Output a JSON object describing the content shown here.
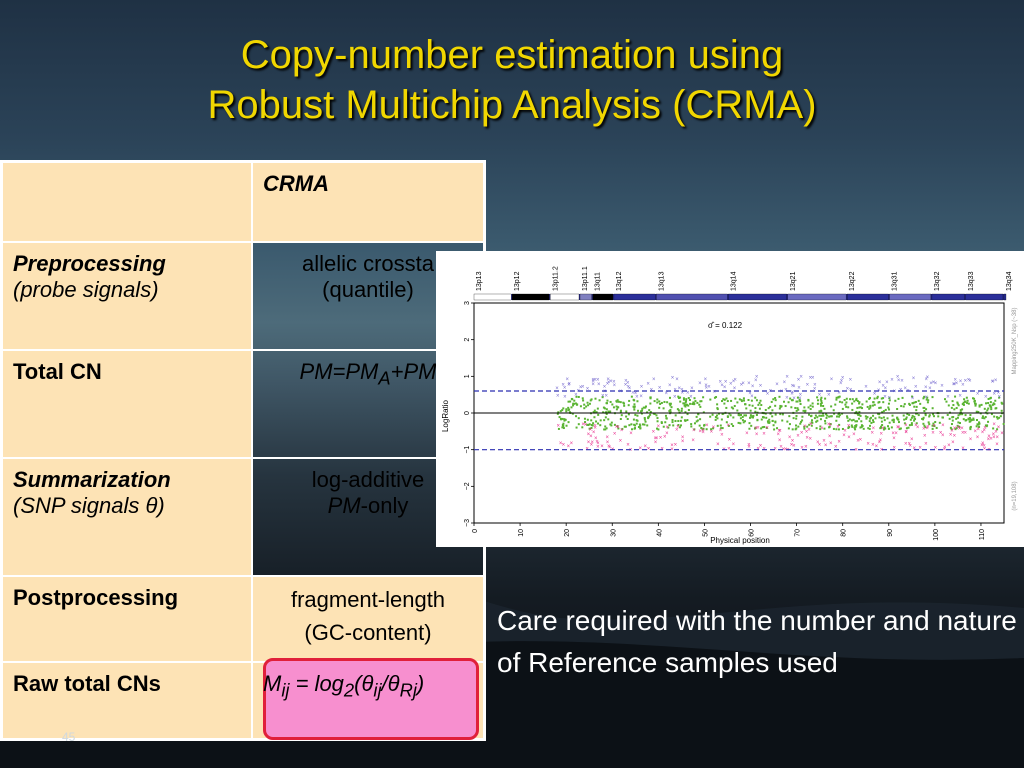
{
  "slide": {
    "title_line1": "Copy-number estimation using",
    "title_line2": "Robust Multichip Analysis (CRMA)",
    "page_number": "45",
    "note": "Care required with the number and nature of Reference samples used",
    "title_color": "#f1d700"
  },
  "table": {
    "header": "CRMA",
    "rows": [
      {
        "label": "Preprocessing",
        "sublabel": "(probe signals)",
        "value1": "allelic crossta",
        "value2": "(quantile)"
      },
      {
        "label": "Total CN",
        "formula_pm": "PM=PM",
        "sub_a": "A",
        "plus": "+PM"
      },
      {
        "label": "Summarization",
        "sublabel_pre": "(SNP signals ",
        "theta": "θ",
        "sublabel_post": ")",
        "value1": "log-additive",
        "value2_pm": "PM",
        "value2_rest": "-only"
      },
      {
        "label": "Postprocessing",
        "value1": "fragment-length",
        "value2": "(GC-content)"
      },
      {
        "label": "Raw total CNs",
        "f_m": "M",
        "f_ij": "ij",
        "f_eq": " = log",
        "f_2": "2",
        "f_open": "(",
        "f_th1": "θ",
        "f_ij2": "ij",
        "f_slash": "/",
        "f_th2": "θ",
        "f_rj": "Rj",
        "f_close": ")"
      }
    ]
  },
  "chart_data": {
    "type": "scatter",
    "xlabel": "Physical position",
    "ylabel": "LogRatio",
    "xlim": [
      0,
      115
    ],
    "ylim": [
      -3,
      3
    ],
    "xticks": [
      "0",
      "10",
      "20",
      "30",
      "40",
      "50",
      "60",
      "70",
      "80",
      "90",
      "100",
      "110"
    ],
    "yticks": [
      "-3",
      "-2",
      "-1",
      "0",
      "1",
      "2",
      "3"
    ],
    "annotation": "σ̂ = 0.122",
    "side_label_top": "Mapping250K_Nsp (~38)",
    "side_label_bottom": "(n=19,108)",
    "bands": [
      "13p13",
      "13p12",
      "13p11.2",
      "13p11.1",
      "13q11",
      "13q12",
      "13q13",
      "13q14",
      "13q21",
      "13q22",
      "13q31",
      "13q32",
      "13q33",
      "13q34"
    ],
    "reference_lines": [
      0.6,
      -1.0
    ],
    "series": [
      {
        "color": "#5ab432"
      },
      {
        "color": "#7b6fd0"
      },
      {
        "color": "#e8318f"
      }
    ]
  }
}
